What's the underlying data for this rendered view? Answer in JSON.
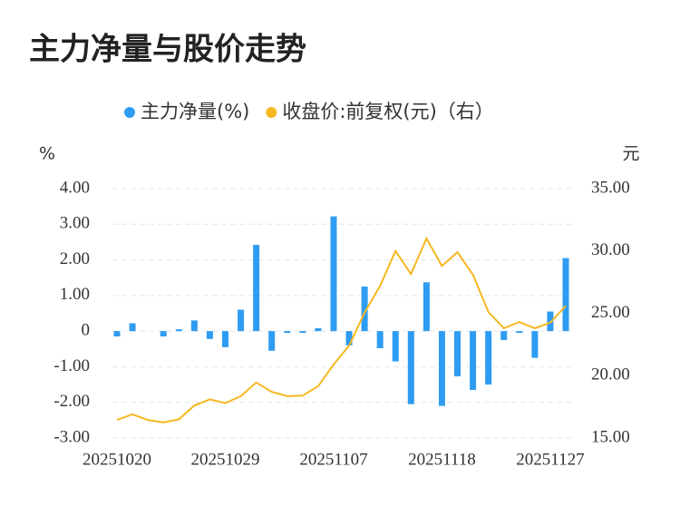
{
  "chart_data": {
    "type": "bar-line",
    "title": "主力净量与股价走势",
    "y_label": "%",
    "y2_label": "元",
    "categories": [
      "20251020",
      null,
      null,
      null,
      null,
      null,
      null,
      "20251029",
      null,
      null,
      null,
      null,
      null,
      null,
      "20251107",
      null,
      null,
      null,
      null,
      null,
      null,
      "20251118",
      null,
      null,
      null,
      null,
      null,
      null,
      "20251127",
      null
    ],
    "series": [
      {
        "name": "主力净量(%)",
        "type": "bar",
        "color": "#2e9cf2",
        "axis": "y",
        "values": [
          -0.15,
          0.22,
          0,
          -0.15,
          0.05,
          0.3,
          -0.22,
          -0.45,
          0.6,
          2.42,
          -0.55,
          -0.05,
          -0.05,
          0.08,
          3.22,
          -0.4,
          1.25,
          -0.48,
          -0.85,
          -2.05,
          1.37,
          -2.1,
          -1.27,
          -1.65,
          -1.5,
          -0.25,
          -0.05,
          -0.75,
          0.55,
          2.05
        ]
      },
      {
        "name": "收盘价:前复权(元)（右）",
        "type": "line",
        "color": "#f5b821",
        "axis": "y2",
        "values": [
          16.45,
          16.9,
          16.45,
          16.25,
          16.5,
          17.6,
          18.1,
          17.8,
          18.35,
          19.45,
          18.7,
          18.35,
          18.4,
          19.15,
          20.9,
          22.4,
          25.05,
          27.2,
          30.0,
          28.15,
          31.0,
          28.8,
          29.9,
          28.1,
          25.1,
          23.8,
          24.3,
          23.8,
          24.25,
          25.6
        ]
      }
    ],
    "ylim": [
      -3,
      4
    ],
    "yticks": [
      {
        "value": -3,
        "label": "-3.00"
      },
      {
        "value": -2,
        "label": "-2.00"
      },
      {
        "value": -1,
        "label": "-1.00"
      },
      0,
      {
        "value": 1,
        "label": "1.00"
      },
      {
        "value": 2,
        "label": "2.00"
      },
      {
        "value": 3,
        "label": "3.00"
      },
      {
        "value": 4,
        "label": "4.00"
      }
    ],
    "y2lim": [
      15,
      35
    ],
    "y2ticks": [
      {
        "value": 15,
        "label": "15.00"
      },
      {
        "value": 20,
        "label": "20.00"
      },
      {
        "value": 25,
        "label": "25.00"
      },
      {
        "value": 30,
        "label": "30.00"
      },
      {
        "value": 35,
        "label": "35.00"
      }
    ],
    "grid": true,
    "legend": "top"
  }
}
